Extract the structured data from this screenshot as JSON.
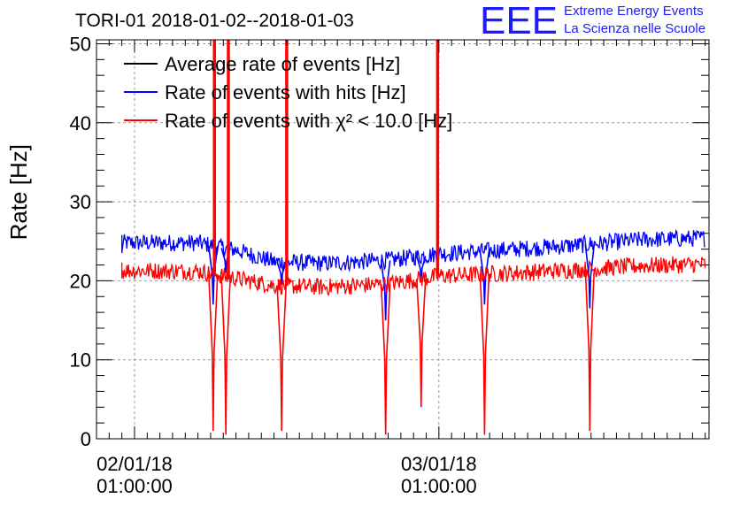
{
  "title": "TORI-01 2018-01-02--2018-01-03",
  "logo": {
    "mark": "EEE",
    "line1": "Extreme Energy Events",
    "line2": "La Scienza nelle Scuole",
    "color": "#1c1cff"
  },
  "chart_data": {
    "type": "line",
    "title": "TORI-01 2018-01-02--2018-01-03",
    "ylabel": "Rate [Hz]",
    "xlabel": "",
    "ylim": [
      0,
      50.5
    ],
    "y_ticks": [
      0,
      10,
      20,
      30,
      40,
      50
    ],
    "x_unit": "hours since 01/01/18 00:00",
    "xlim": [
      22.0,
      70.3
    ],
    "x_tick_labels": [
      {
        "x": 25.0,
        "line1": "02/01/18",
        "line2": "01:00:00"
      },
      {
        "x": 49.0,
        "line1": "03/01/18",
        "line2": "01:00:00"
      }
    ],
    "grid": true,
    "legend_position": "top-left",
    "series": [
      {
        "name": "Average rate of events [Hz]",
        "color": "#000000",
        "x": [
          25.0,
          50.0
        ],
        "y": [
          0,
          0
        ],
        "visible_in_plot": false
      },
      {
        "name": "Rate of events with hits [Hz]",
        "color": "#0000ff",
        "x": [
          25.0,
          30.0,
          33.0,
          36.0,
          40.0,
          45.0,
          49.0,
          55.0,
          60.0,
          65.0,
          70.0
        ],
        "y": [
          24.8,
          24.8,
          23.9,
          22.4,
          22.2,
          22.6,
          23.4,
          24.0,
          24.5,
          25.2,
          25.4
        ],
        "drops": [
          {
            "x": 31.2,
            "y": 17.0
          },
          {
            "x": 32.2,
            "y": 21.0
          },
          {
            "x": 36.6,
            "y": 19.5
          },
          {
            "x": 44.8,
            "y": 15.0
          },
          {
            "x": 47.6,
            "y": 20.0
          },
          {
            "x": 52.6,
            "y": 17.0
          },
          {
            "x": 60.9,
            "y": 16.5
          }
        ]
      },
      {
        "name": "Rate of events with χ² < 10.0 [Hz]",
        "color": "#ff0000",
        "x": [
          25.0,
          30.0,
          33.0,
          36.0,
          40.0,
          45.0,
          49.0,
          55.0,
          60.0,
          65.0,
          70.0
        ],
        "y": [
          21.3,
          21.2,
          20.3,
          19.4,
          19.2,
          19.6,
          20.6,
          21.0,
          21.4,
          21.9,
          22.1
        ],
        "spikes_up": [
          {
            "x": 31.3,
            "y": 50.5
          },
          {
            "x": 32.4,
            "y": 50.5
          },
          {
            "x": 37.0,
            "y": 50.5
          },
          {
            "x": 48.9,
            "y": 50.5
          }
        ],
        "drops": [
          {
            "x": 31.2,
            "y": 1.0
          },
          {
            "x": 32.2,
            "y": 0.5
          },
          {
            "x": 36.6,
            "y": 1.0
          },
          {
            "x": 44.8,
            "y": 0.5
          },
          {
            "x": 47.6,
            "y": 4.0
          },
          {
            "x": 52.6,
            "y": 0.5
          },
          {
            "x": 60.9,
            "y": 1.0
          }
        ]
      }
    ],
    "data_x_range": [
      24.0,
      70.0
    ]
  }
}
